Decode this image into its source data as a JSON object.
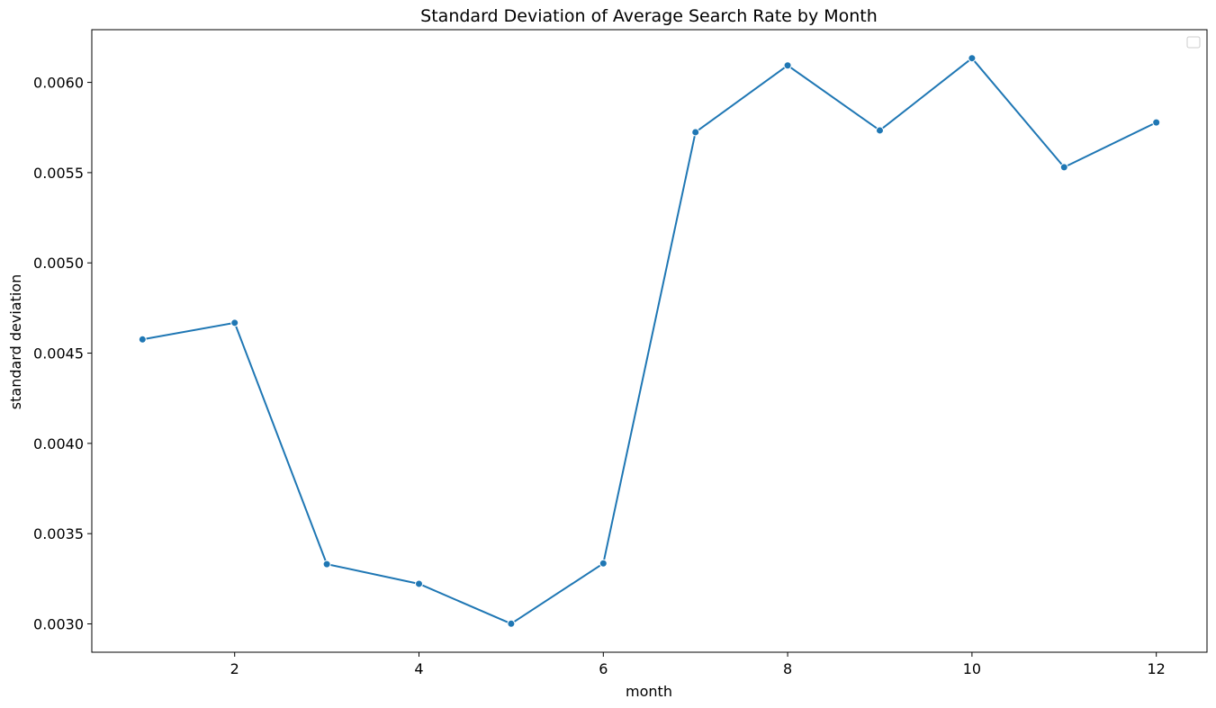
{
  "chart_data": {
    "type": "line",
    "title": "Standard Deviation of Average Search Rate by Month",
    "xlabel": "month",
    "ylabel": "standard deviation",
    "x": [
      1,
      2,
      3,
      4,
      5,
      6,
      7,
      8,
      9,
      10,
      11,
      12
    ],
    "series": [
      {
        "values": [
          0.004576,
          0.004668,
          0.003331,
          0.003222,
          0.003001,
          0.003335,
          0.005724,
          0.006094,
          0.005734,
          0.006134,
          0.00553,
          0.005778
        ],
        "color": "#1f77b4",
        "marker": "circle"
      }
    ],
    "xlim": [
      0.45,
      12.55
    ],
    "ylim": [
      0.002843,
      0.006292
    ],
    "xticks": [
      2,
      4,
      6,
      8,
      10,
      12
    ],
    "xtick_labels": [
      "2",
      "4",
      "6",
      "8",
      "10",
      "12"
    ],
    "yticks": [
      0.003,
      0.0035,
      0.004,
      0.0045,
      0.005,
      0.0055,
      0.006
    ],
    "ytick_labels": [
      "0.0030",
      "0.0035",
      "0.0040",
      "0.0045",
      "0.0050",
      "0.0055",
      "0.0060"
    ],
    "grid": false,
    "legend": "top-right (empty)"
  }
}
